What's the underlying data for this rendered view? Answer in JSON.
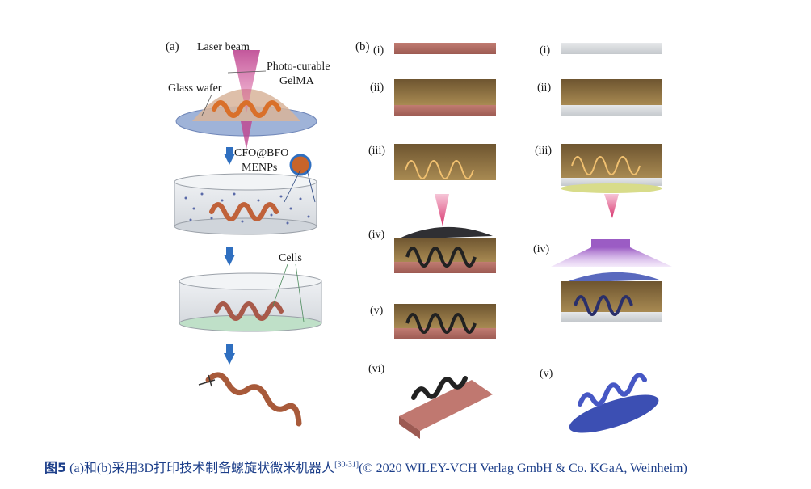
{
  "panel_a": {
    "label": "(a)",
    "laser_beam": "Laser beam",
    "photo_curable_1": "Photo-curable",
    "photo_curable_2": "GelMA",
    "glass_wafer": "Glass wafer",
    "menps_1": "CFO@BFO",
    "menps_2": "MENPs",
    "cells": "Cells"
  },
  "panel_b": {
    "label": "(b)",
    "left_steps": [
      "(i)",
      "(ii)",
      "(iii)",
      "(iv)",
      "(v)",
      "(vi)"
    ],
    "right_steps": [
      "(i)",
      "(ii)",
      "(iii)",
      "(iv)",
      "(v)"
    ]
  },
  "caption": {
    "fig_no": "图5",
    "text": "(a)和(b)采用3D打印技术制备螺旋状微米机器人",
    "cite": "[30-31]",
    "credit": "(© 2020 WILEY-VCH Verlag GmbH & Co. KGaA, Weinheim)"
  },
  "colors": {
    "caption": "#1d3f8a",
    "substrate_red": "#b06a62",
    "resin_brown": "#8a6a3a",
    "helix_orange": "#d9702a",
    "helix_blue": "#3c4fb3",
    "arrow_blue": "#2f6fc0",
    "laser_pink": "#d6336c",
    "uv_purple": "#9b5cc4"
  }
}
